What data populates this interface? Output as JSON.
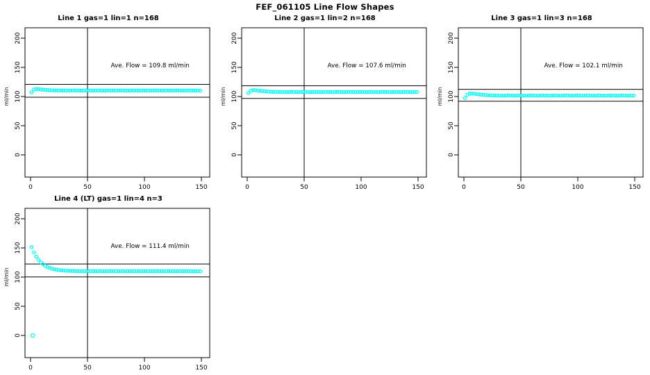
{
  "main": {
    "title": "FEF_061105  Line Flow Shapes"
  },
  "chart_data": [
    {
      "type": "scatter",
      "title": "Line 1 gas=1 lin=1 n=168",
      "n": 168,
      "ave_flow": 109.8,
      "annotation": {
        "label": "Ave. Flow =  109.8  ml/min",
        "x": 105,
        "y": 150
      },
      "xlabel": "",
      "ylabel": "ml/min",
      "xlim": [
        0,
        150
      ],
      "ylim": [
        0,
        200
      ],
      "xticks": [
        0,
        50,
        100,
        150
      ],
      "yticks": [
        0,
        50,
        100,
        150,
        200
      ],
      "vline": 50,
      "hlines": [
        120.8,
        98.8
      ],
      "marker": {
        "shape": "open-circle",
        "color": "#00FFFF"
      },
      "x_start": 1,
      "x_step": 2,
      "y": [
        107.0,
        112.0,
        113.0,
        112.6,
        112.1,
        111.7,
        111.4,
        111.1,
        110.9,
        110.7,
        110.6,
        110.5,
        110.4,
        110.4,
        110.5,
        110.2,
        110.4,
        110.1,
        110.3,
        110.6,
        110.2,
        110.4,
        110.1,
        110.3,
        110.5,
        110.2,
        110.4,
        110.1,
        110.3,
        110.6,
        110.2,
        110.4,
        110.1,
        110.3,
        110.5,
        110.2,
        110.4,
        110.1,
        110.3,
        110.6,
        110.2,
        110.4,
        110.1,
        110.3,
        110.5,
        110.2,
        110.4,
        110.1,
        110.3,
        110.6,
        110.2,
        110.4,
        110.1,
        110.3,
        110.5,
        110.2,
        110.4,
        110.1,
        110.3,
        110.6,
        110.2,
        110.4,
        110.1,
        110.3,
        110.5,
        110.2,
        110.4,
        110.1,
        110.3,
        110.6,
        110.2,
        110.4,
        110.1,
        110.3,
        110.3
      ],
      "outliers": []
    },
    {
      "type": "scatter",
      "title": "Line 2 gas=1 lin=2 n=168",
      "n": 168,
      "ave_flow": 107.6,
      "annotation": {
        "label": "Ave. Flow =  107.6  ml/min",
        "x": 105,
        "y": 150
      },
      "xlabel": "",
      "ylabel": "ml/min",
      "xlim": [
        0,
        150
      ],
      "ylim": [
        0,
        200
      ],
      "xticks": [
        0,
        50,
        100,
        150
      ],
      "yticks": [
        0,
        50,
        100,
        150,
        200
      ],
      "vline": 50,
      "hlines": [
        118.4,
        96.8
      ],
      "marker": {
        "shape": "open-circle",
        "color": "#00FFFF"
      },
      "x_start": 1,
      "x_step": 2,
      "y": [
        106.0,
        109.8,
        111.0,
        110.8,
        110.3,
        109.8,
        109.4,
        109.0,
        108.7,
        108.4,
        108.2,
        108.0,
        107.9,
        107.9,
        107.9,
        107.6,
        107.8,
        107.5,
        107.7,
        108.0,
        107.6,
        107.8,
        107.5,
        107.7,
        107.9,
        107.6,
        107.8,
        107.5,
        107.7,
        108.0,
        107.6,
        107.8,
        107.5,
        107.7,
        107.9,
        107.6,
        107.8,
        107.5,
        107.7,
        108.0,
        107.6,
        107.8,
        107.5,
        107.7,
        107.9,
        107.6,
        107.8,
        107.5,
        107.7,
        108.0,
        107.6,
        107.8,
        107.5,
        107.7,
        107.9,
        107.6,
        107.8,
        107.5,
        107.7,
        108.0,
        107.6,
        107.8,
        107.5,
        107.7,
        107.9,
        107.6,
        107.8,
        107.5,
        107.7,
        108.0,
        107.6,
        107.8,
        107.5,
        107.7,
        107.7
      ],
      "outliers": []
    },
    {
      "type": "scatter",
      "title": "Line 3 gas=1 lin=3 n=168",
      "n": 168,
      "ave_flow": 102.1,
      "annotation": {
        "label": "Ave. Flow =  102.1  ml/min",
        "x": 105,
        "y": 150
      },
      "xlabel": "",
      "ylabel": "ml/min",
      "xlim": [
        0,
        150
      ],
      "ylim": [
        0,
        200
      ],
      "xticks": [
        0,
        50,
        100,
        150
      ],
      "yticks": [
        0,
        50,
        100,
        150,
        200
      ],
      "vline": 50,
      "hlines": [
        112.3,
        91.9
      ],
      "marker": {
        "shape": "open-circle",
        "color": "#00FFFF"
      },
      "x_start": 1,
      "x_step": 2,
      "y": [
        97.5,
        103.0,
        105.0,
        105.1,
        104.7,
        104.2,
        103.7,
        103.3,
        102.9,
        102.6,
        102.3,
        102.1,
        101.9,
        101.8,
        101.8,
        101.5,
        101.7,
        101.4,
        101.6,
        101.9,
        101.5,
        101.7,
        101.4,
        101.6,
        101.8,
        101.5,
        101.7,
        101.4,
        101.6,
        101.9,
        101.5,
        101.7,
        101.4,
        101.6,
        101.8,
        101.5,
        101.7,
        101.4,
        101.6,
        101.9,
        101.5,
        101.7,
        101.4,
        101.6,
        101.8,
        101.5,
        101.7,
        101.4,
        101.6,
        101.9,
        101.5,
        101.7,
        101.4,
        101.6,
        101.8,
        101.5,
        101.7,
        101.4,
        101.6,
        101.9,
        101.5,
        101.7,
        101.4,
        101.6,
        101.8,
        101.5,
        101.7,
        101.4,
        101.6,
        101.9,
        101.5,
        101.7,
        101.4,
        101.6,
        101.6
      ],
      "outliers": []
    },
    {
      "type": "scatter",
      "title": "Line 4 (LT) gas=1 lin=4 n=3",
      "n": 3,
      "ave_flow": 111.4,
      "annotation": {
        "label": "Ave. Flow =  111.4  ml/min",
        "x": 105,
        "y": 150
      },
      "xlabel": "",
      "ylabel": "ml/min",
      "xlim": [
        0,
        150
      ],
      "ylim": [
        0,
        200
      ],
      "xticks": [
        0,
        50,
        100,
        150
      ],
      "yticks": [
        0,
        50,
        100,
        150,
        200
      ],
      "vline": 50,
      "hlines": [
        122.5,
        100.3
      ],
      "marker": {
        "shape": "open-circle",
        "color": "#00FFFF"
      },
      "x_start": 1,
      "x_step": 2,
      "y": [
        151.5,
        142.3,
        135.2,
        129.6,
        125.3,
        121.9,
        119.3,
        117.2,
        115.6,
        114.4,
        113.4,
        112.7,
        112.1,
        111.6,
        111.3,
        111.0,
        110.8,
        110.6,
        110.5,
        110.4,
        110.2,
        110.0,
        110.1,
        109.9,
        110.1,
        110.2,
        110.0,
        110.1,
        109.9,
        110.0,
        110.2,
        110.0,
        110.1,
        109.9,
        110.1,
        110.2,
        110.0,
        110.1,
        109.9,
        110.0,
        110.2,
        110.0,
        110.1,
        109.9,
        110.1,
        110.2,
        110.0,
        110.1,
        109.9,
        110.0,
        110.2,
        110.0,
        110.1,
        109.9,
        110.1,
        110.2,
        110.0,
        110.1,
        109.9,
        110.0,
        110.2,
        110.0,
        110.1,
        109.9,
        110.1,
        110.2,
        110.0,
        110.1,
        109.9,
        110.0,
        109.9,
        109.8,
        109.9,
        109.8,
        109.8
      ],
      "outliers": [
        [
          2,
          0
        ]
      ]
    }
  ]
}
